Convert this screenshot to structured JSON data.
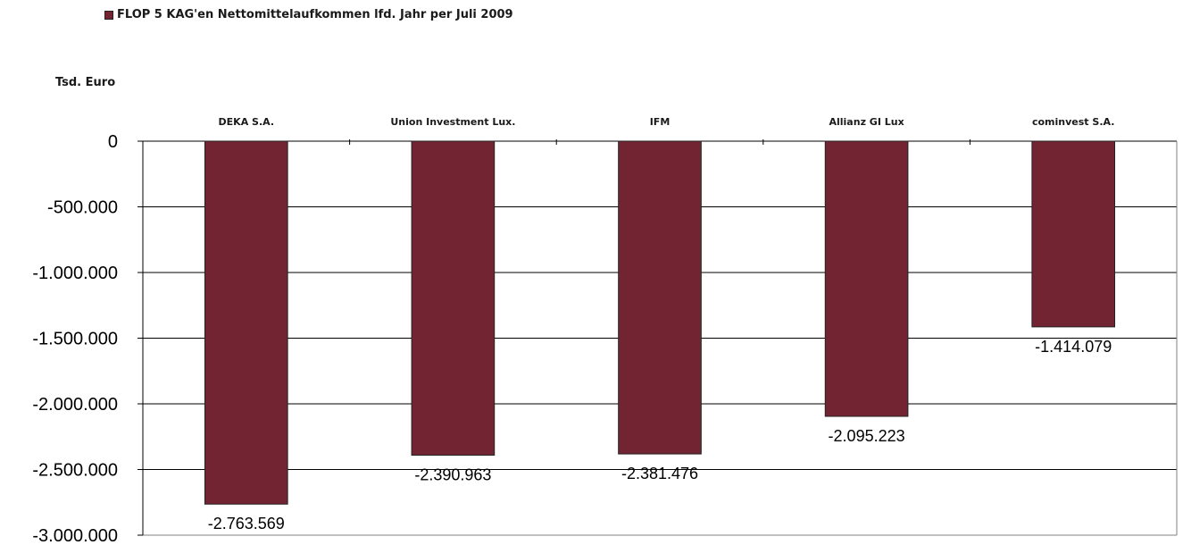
{
  "chart_data": {
    "type": "bar",
    "title": "",
    "ylabel": "Tsd. Euro",
    "xlabel": "",
    "legend": {
      "position": "top-left",
      "entries": [
        {
          "name": "FLOP 5 KAG'en Nettomittelaufkommen lfd. Jahr per Juli 2009",
          "color": "#722433"
        }
      ]
    },
    "categories": [
      "DEKA S.A.",
      "Union Investment Lux.",
      "IFM",
      "Allianz GI Lux",
      "cominvest S.A."
    ],
    "series": [
      {
        "name": "FLOP 5 KAG'en Nettomittelaufkommen lfd. Jahr per Juli 2009",
        "values": [
          -2763569,
          -2390963,
          -2381476,
          -2095223,
          -1414079
        ],
        "value_labels": [
          "-2.763.569",
          "-2.390.963",
          "-2.381.476",
          "-2.095.223",
          "-1.414.079"
        ],
        "color": "#722433"
      }
    ],
    "ylim": [
      -3000000,
      0
    ],
    "yticks": [
      0,
      -500000,
      -1000000,
      -1500000,
      -2000000,
      -2500000,
      -3000000
    ],
    "ytick_labels": [
      "0",
      "-500.000",
      "-1.000.000",
      "-1.500.000",
      "-2.000.000",
      "-2.500.000",
      "-3.000.000"
    ],
    "category_axis_position": "top",
    "grid": true
  }
}
